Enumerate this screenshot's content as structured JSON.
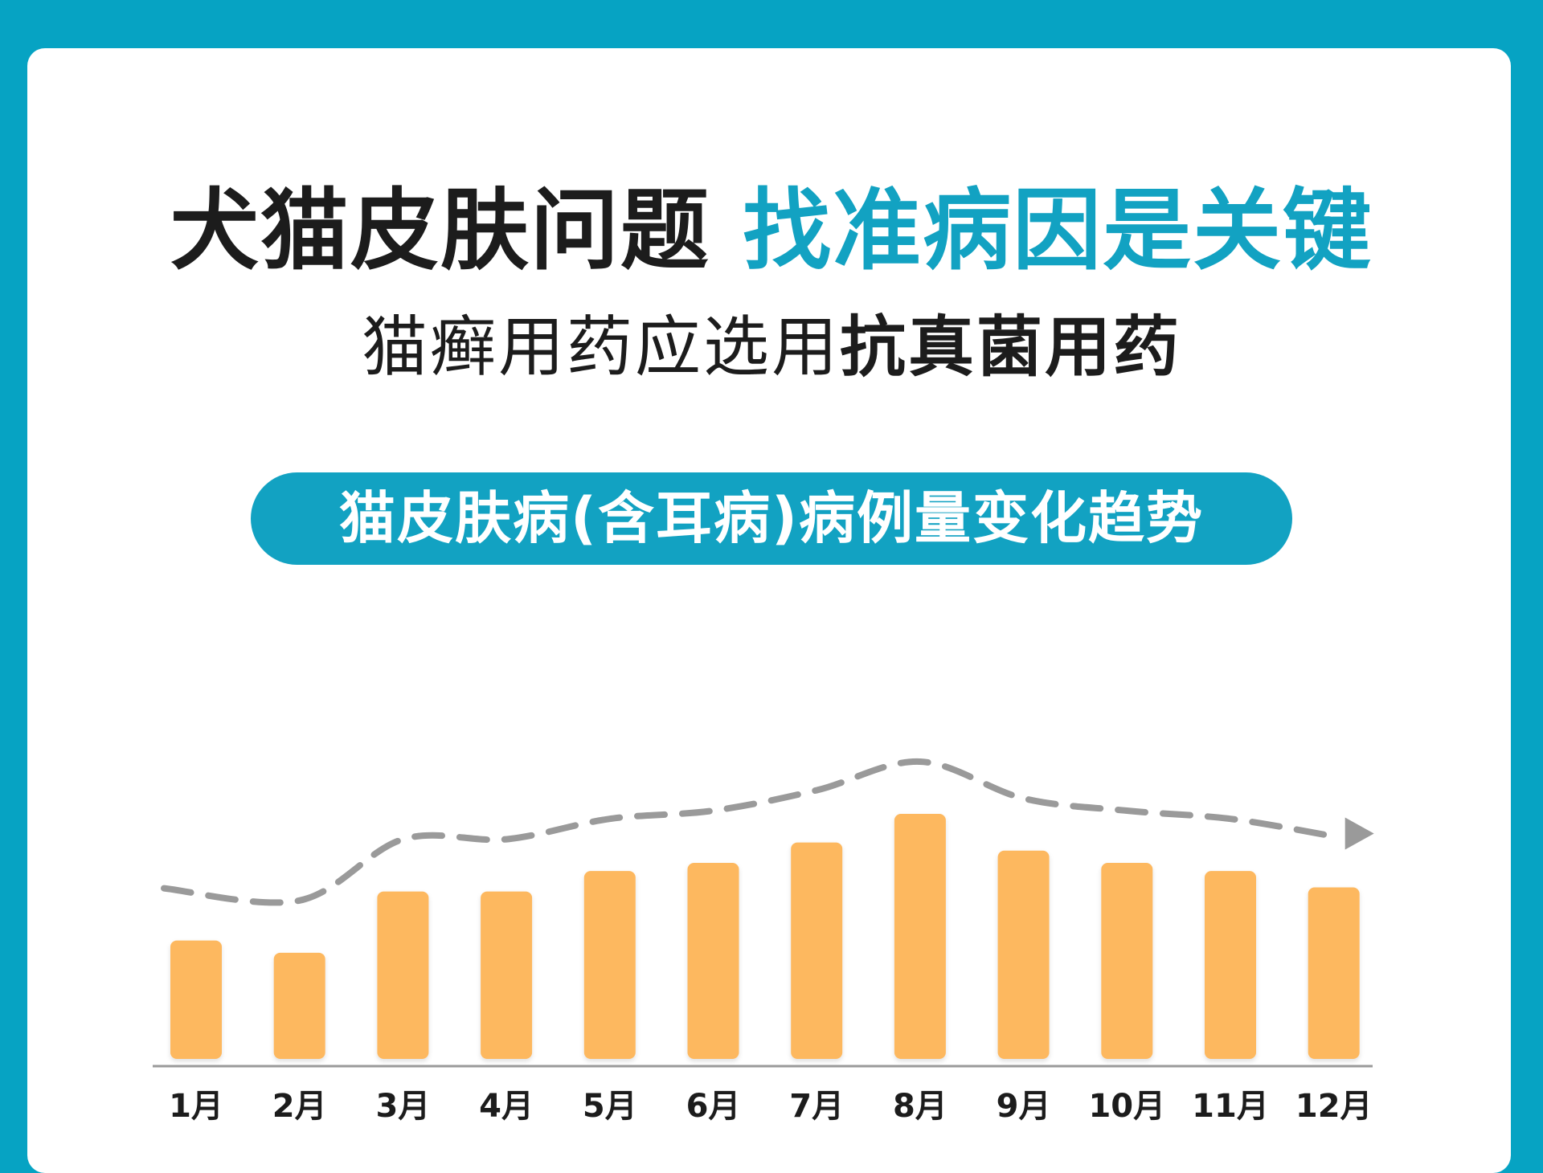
{
  "headline": {
    "part1": "犬猫皮肤问题",
    "part2": "找准病因是关键"
  },
  "subline": {
    "part1": "猫癣用药应选用",
    "part2": "抗真菌用药"
  },
  "pill_label": "猫皮肤病(含耳病)病例量变化趋势",
  "colors": {
    "background": "#06a3c3",
    "accent": "#12a2c2",
    "bar": "#fdb85f",
    "trend": "#9a9a9a"
  },
  "chart_data": {
    "type": "bar",
    "title": "猫皮肤病(含耳病)病例量变化趋势",
    "categories": [
      "1月",
      "2月",
      "3月",
      "4月",
      "5月",
      "6月",
      "7月",
      "8月",
      "9月",
      "10月",
      "11月",
      "12月"
    ],
    "values": [
      29,
      26,
      41,
      41,
      46,
      48,
      53,
      60,
      51,
      48,
      46,
      42
    ],
    "ylim": [
      0,
      60
    ],
    "y_axis_shown": false,
    "grid": false,
    "trend_line": "dashed-arrow"
  }
}
